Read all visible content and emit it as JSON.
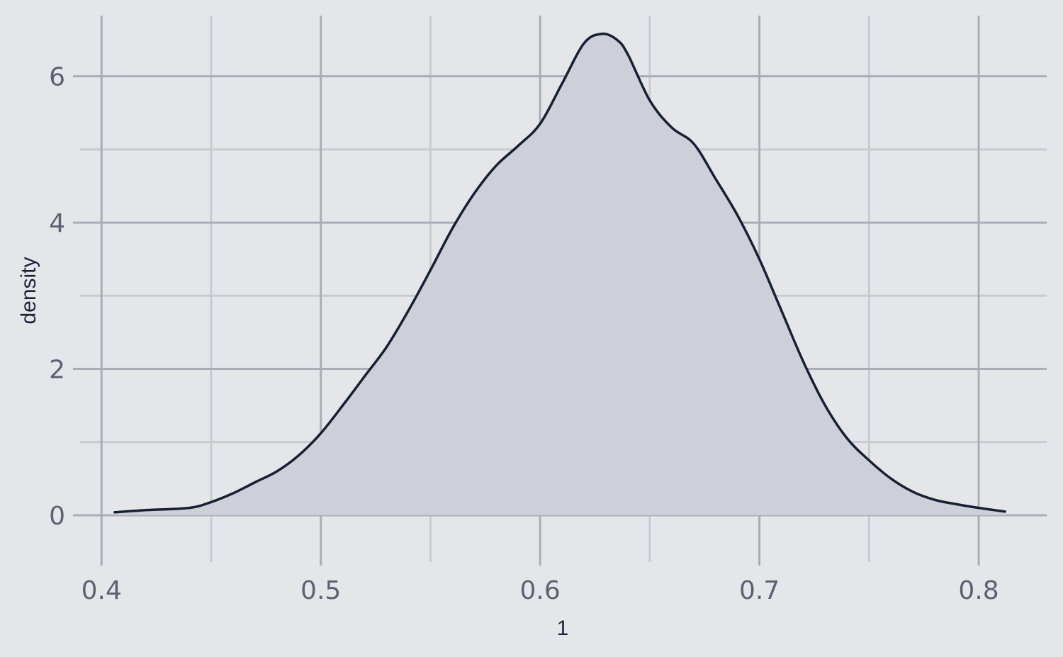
{
  "chart_data": {
    "type": "area",
    "title": "",
    "xlabel": "1",
    "ylabel": "density",
    "xlim": [
      0.387,
      1.0
    ],
    "xlim_visible": [
      0.387,
      0.831
    ],
    "ylim": [
      -0.64,
      6.83
    ],
    "x_ticks": [
      0.4,
      0.5,
      0.6,
      0.7,
      0.8
    ],
    "x_tick_labels": [
      "0.4",
      "0.5",
      "0.6",
      "0.7",
      "0.8"
    ],
    "x_minor_ticks": [
      0.45,
      0.55,
      0.65,
      0.75
    ],
    "y_ticks": [
      0,
      2,
      4,
      6
    ],
    "y_tick_labels": [
      "0",
      "2",
      "4",
      "6"
    ],
    "y_minor_ticks": [
      1,
      3,
      5
    ],
    "grid": true,
    "colors": {
      "background": "#e5e6ea",
      "fill": "#cdd0d8",
      "line": "#172033"
    },
    "series": [
      {
        "x": [
          0.406,
          0.42,
          0.44,
          0.45,
          0.46,
          0.47,
          0.48,
          0.49,
          0.5,
          0.51,
          0.52,
          0.53,
          0.54,
          0.55,
          0.56,
          0.57,
          0.58,
          0.59,
          0.6,
          0.61,
          0.62,
          0.628,
          0.635,
          0.64,
          0.65,
          0.66,
          0.67,
          0.68,
          0.69,
          0.7,
          0.71,
          0.72,
          0.73,
          0.74,
          0.75,
          0.76,
          0.77,
          0.78,
          0.79,
          0.8,
          0.812
        ],
        "values": [
          0.04,
          0.07,
          0.1,
          0.18,
          0.3,
          0.45,
          0.6,
          0.82,
          1.12,
          1.5,
          1.9,
          2.3,
          2.8,
          3.35,
          3.92,
          4.4,
          4.78,
          5.05,
          5.35,
          5.9,
          6.45,
          6.58,
          6.5,
          6.3,
          5.67,
          5.3,
          5.08,
          4.6,
          4.1,
          3.5,
          2.8,
          2.1,
          1.5,
          1.05,
          0.75,
          0.5,
          0.32,
          0.21,
          0.15,
          0.1,
          0.05
        ]
      }
    ]
  }
}
